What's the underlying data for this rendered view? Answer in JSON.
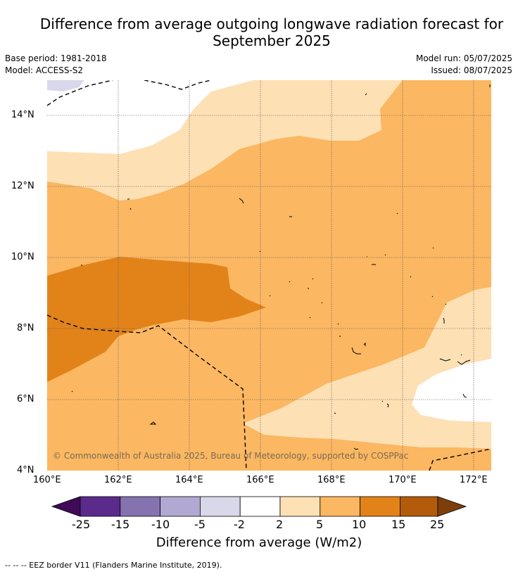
{
  "title_line1": "Difference from average outgoing longwave radiation forecast for",
  "title_line2": "September 2025",
  "base_period": "Base period: 1981-2018",
  "model": "Model: ACCESS-S2",
  "model_run": "Model run: 05/07/2025",
  "issued": "Issued: 08/07/2025",
  "copyright": "© Commonwealth of Australia 2025, Bureau of Meteorology, supported by COSPPac",
  "map": {
    "lon_range": [
      160,
      172.5
    ],
    "lat_range": [
      4,
      15
    ],
    "lon_ticks": [
      "160°E",
      "162°E",
      "164°E",
      "166°E",
      "168°E",
      "170°E",
      "172°E"
    ],
    "lat_ticks": [
      "4°N",
      "6°N",
      "8°N",
      "10°N",
      "12°N",
      "14°N"
    ],
    "gridlines": true
  },
  "legend": {
    "tick_labels": [
      "-25",
      "-15",
      "-10",
      "-5",
      "-2",
      "2",
      "5",
      "10",
      "15",
      "25"
    ],
    "colors": [
      "#3f0a58",
      "#5b2b8c",
      "#8573b0",
      "#b1a8d3",
      "#d8d8ea",
      "#ffffff",
      "#fde0b4",
      "#fbb762",
      "#e2831a",
      "#b15b0b",
      "#7e3e0c"
    ],
    "title": "Difference from average (W/m2)"
  },
  "footnote": "--  --  -- EEZ border V11 (Flanders Marine Institute, 2019)."
}
